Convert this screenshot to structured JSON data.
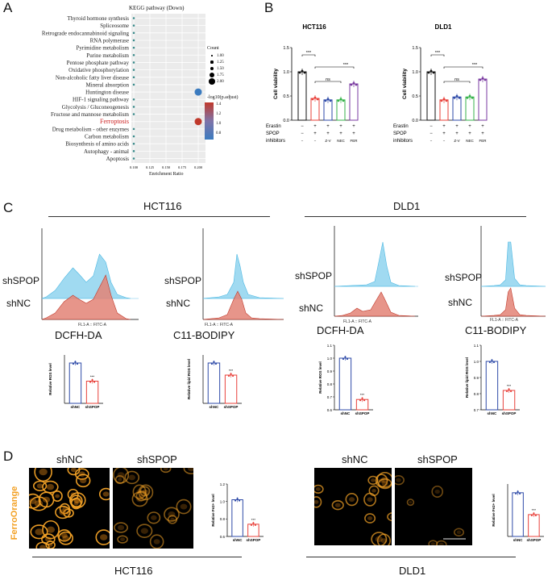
{
  "panel_labels": {
    "A": "A",
    "B": "B",
    "C": "C",
    "D": "D"
  },
  "panelA": {
    "title": "KEGG pathway (Down)",
    "pathways": [
      "Thyroid hormone synthesis",
      "Spliceosome",
      "Retrograde endocannabinoid signaling",
      "RNA polymerase",
      "Pyrimidine metabolism",
      "Purine metabolism",
      "Pentose phosphate pathway",
      "Oxidative phosphorylation",
      "Non-alcoholic fatty liver disease",
      "Mineral absorption",
      "Huntington disease",
      "HIF-1 signaling pathway",
      "Glycolysis / Gluconeogenesis",
      "Fructose and mannose metabolism",
      "Ferroptosis",
      "Drug metabolism - other enzymes",
      "Carbon metabolism",
      "Biosynthesis of amino acids",
      "Autophagy - animal",
      "Apoptosis"
    ],
    "highlight": "Ferroptosis",
    "xticks": [
      "0.100",
      "0.125",
      "0.150",
      "0.175",
      "0.200"
    ],
    "xlabel": "Enrichment Ratio",
    "count_legend_title": "Count",
    "count_values": [
      "1.00",
      "1.25",
      "1.50",
      "1.75",
      "2.00"
    ],
    "padj_legend_title": "-log10(p.adjust)",
    "padj_values": [
      "1.4",
      "1.2",
      "1.0",
      "0.8"
    ]
  },
  "panelB": {
    "hct_title": "HCT116",
    "dld_title": "DLD1",
    "ylabel": "Cell viability",
    "yticks": [
      "0.0",
      "0.5",
      "1.0",
      "1.5"
    ],
    "row_labels": [
      "Erastin",
      "SPOP",
      "inhibitors"
    ],
    "erastin": [
      "−",
      "+",
      "+",
      "+",
      "+"
    ],
    "spop": [
      "−",
      "+",
      "+",
      "+",
      "+"
    ],
    "inhibitors": [
      "−",
      "−",
      "Z-V",
      "NEC",
      "FER"
    ],
    "sig": "***",
    "ns": "ns"
  },
  "panelC": {
    "hct_title": "HCT116",
    "dld_title": "DLD1",
    "shSPOP": "shSPOP",
    "shNC": "shNC",
    "axis_label": "FL1-A :: FITC-A",
    "dcfh": "DCFH-DA",
    "c11": "C11-BODIPY",
    "ros_ylabel": "Relative ROS level",
    "lipid_ylabel": "Relative lipid ROS level",
    "xcat": [
      "shNC",
      "shSPOP"
    ],
    "sig": "***",
    "yticks_ros_dld": [
      "1.1",
      "1.0",
      "0.9",
      "0.8",
      "0.7",
      "0.6"
    ],
    "yticks_lipid_dld": [
      "1.1",
      "1.0",
      "0.9",
      "0.8",
      "0.7"
    ]
  },
  "panelD": {
    "shNC": "shNC",
    "shSPOP": "shSPOP",
    "side_label": "FerroOrange",
    "fe_ylabel": "Relative Fe2+ level",
    "yticks_hct": [
      "1.2",
      "1.0",
      "0.8",
      "0.6"
    ],
    "xcat": [
      "shNC",
      "shSPOP"
    ],
    "sig": "***",
    "hct_caption": "HCT116",
    "dld_caption": "DLD1"
  },
  "colors": {
    "blue": "#2e4aa8",
    "red": "#e8403a",
    "orange": "#f3a227",
    "cyan": "#8fd4ee",
    "salmon": "#e38375"
  },
  "chart_data": [
    {
      "type": "scatter",
      "title": "KEGG pathway (Down)",
      "xlabel": "Enrichment Ratio",
      "categories": [
        "Thyroid hormone synthesis",
        "Spliceosome",
        "Retrograde endocannabinoid signaling",
        "RNA polymerase",
        "Pyrimidine metabolism",
        "Purine metabolism",
        "Pentose phosphate pathway",
        "Oxidative phosphorylation",
        "Non-alcoholic fatty liver disease",
        "Mineral absorption",
        "Huntington disease",
        "HIF-1 signaling pathway",
        "Glycolysis / Gluconeogenesis",
        "Fructose and mannose metabolism",
        "Ferroptosis",
        "Drug metabolism - other enzymes",
        "Carbon metabolism",
        "Biosynthesis of amino acids",
        "Autophagy - animal",
        "Apoptosis"
      ],
      "x": [
        0.1,
        0.1,
        0.1,
        0.1,
        0.1,
        0.1,
        0.1,
        0.1,
        0.1,
        0.1,
        0.2,
        0.1,
        0.1,
        0.1,
        0.2,
        0.1,
        0.1,
        0.1,
        0.1,
        0.1
      ],
      "count": [
        1,
        1,
        1,
        1,
        1,
        1,
        1,
        1,
        1,
        1,
        2,
        1,
        1,
        1,
        2,
        1,
        1,
        1,
        1,
        1
      ],
      "xlim": [
        0.1,
        0.2
      ]
    },
    {
      "type": "bar",
      "title": "HCT116",
      "ylabel": "Cell viability",
      "categories": [
        "1",
        "2",
        "3",
        "4",
        "5"
      ],
      "values": [
        1.0,
        0.45,
        0.42,
        0.42,
        0.75
      ],
      "ylim": [
        0,
        1.5
      ]
    },
    {
      "type": "bar",
      "title": "DLD1",
      "ylabel": "Cell viability",
      "categories": [
        "1",
        "2",
        "3",
        "4",
        "5"
      ],
      "values": [
        1.0,
        0.42,
        0.48,
        0.48,
        0.85
      ],
      "ylim": [
        0,
        1.5
      ]
    },
    {
      "type": "bar",
      "title": "DCFH-DA HCT116",
      "ylabel": "Relative ROS level",
      "categories": [
        "shNC",
        "shSPOP"
      ],
      "values": [
        1.0,
        0.55
      ],
      "ylim": [
        0,
        1.2
      ]
    },
    {
      "type": "bar",
      "title": "C11-BODIPY HCT116",
      "ylabel": "Relative lipid ROS level",
      "categories": [
        "shNC",
        "shSPOP"
      ],
      "values": [
        1.0,
        0.7
      ],
      "ylim": [
        0,
        1.2
      ]
    },
    {
      "type": "bar",
      "title": "DCFH-DA DLD1",
      "ylabel": "Relative ROS level",
      "categories": [
        "shNC",
        "shSPOP"
      ],
      "values": [
        1.0,
        0.68
      ],
      "ylim": [
        0.6,
        1.1
      ]
    },
    {
      "type": "bar",
      "title": "C11-BODIPY DLD1",
      "ylabel": "Relative lipid ROS level",
      "categories": [
        "shNC",
        "shSPOP"
      ],
      "values": [
        1.0,
        0.82
      ],
      "ylim": [
        0.7,
        1.1
      ]
    },
    {
      "type": "bar",
      "title": "FerroOrange HCT116",
      "ylabel": "Relative Fe2+ level",
      "categories": [
        "shNC",
        "shSPOP"
      ],
      "values": [
        1.02,
        0.74
      ],
      "ylim": [
        0.6,
        1.2
      ]
    },
    {
      "type": "bar",
      "title": "FerroOrange DLD1",
      "ylabel": "Relative Fe2+ level",
      "categories": [
        "shNC",
        "shSPOP"
      ],
      "values": [
        1.0,
        0.5
      ],
      "ylim": [
        0,
        1.2
      ]
    }
  ]
}
